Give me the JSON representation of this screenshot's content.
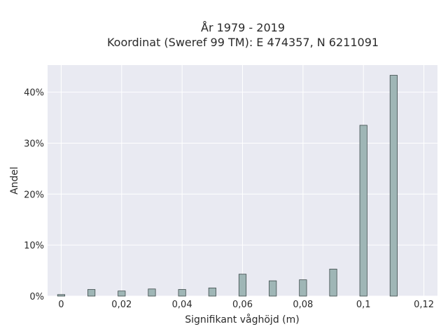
{
  "chart_data": {
    "type": "bar",
    "title_line1": "År 1979 - 2019",
    "title_line2": "Koordinat (Sweref 99 TM): E 474357, N 6211091",
    "xlabel": "Signifikant våghöjd (m)",
    "ylabel": "Andel",
    "x": [
      0,
      0.01,
      0.02,
      0.03,
      0.04,
      0.05,
      0.06,
      0.07,
      0.08,
      0.09,
      0.1,
      0.11
    ],
    "values": [
      0.3,
      1.3,
      1.0,
      1.4,
      1.3,
      1.6,
      4.3,
      3.0,
      3.2,
      5.3,
      33.5,
      43.3
    ],
    "xlim": [
      -0.0045,
      0.1245
    ],
    "ylim": [
      0,
      45.3
    ],
    "x_ticks": [
      0,
      0.02,
      0.04,
      0.06,
      0.08,
      0.1,
      0.12
    ],
    "x_tick_labels": [
      "0",
      "0,02",
      "0,04",
      "0,06",
      "0,08",
      "0,1",
      "0,12"
    ],
    "y_ticks": [
      0,
      10,
      20,
      30,
      40
    ],
    "y_tick_labels": [
      "0%",
      "10%",
      "20%",
      "30%",
      "40%"
    ],
    "grid": true,
    "colors": {
      "bar_fill": "#9fb6b6",
      "bar_stroke": "#3d4a4a",
      "plot_bg": "#e9eaf2",
      "grid": "#ffffff"
    }
  }
}
